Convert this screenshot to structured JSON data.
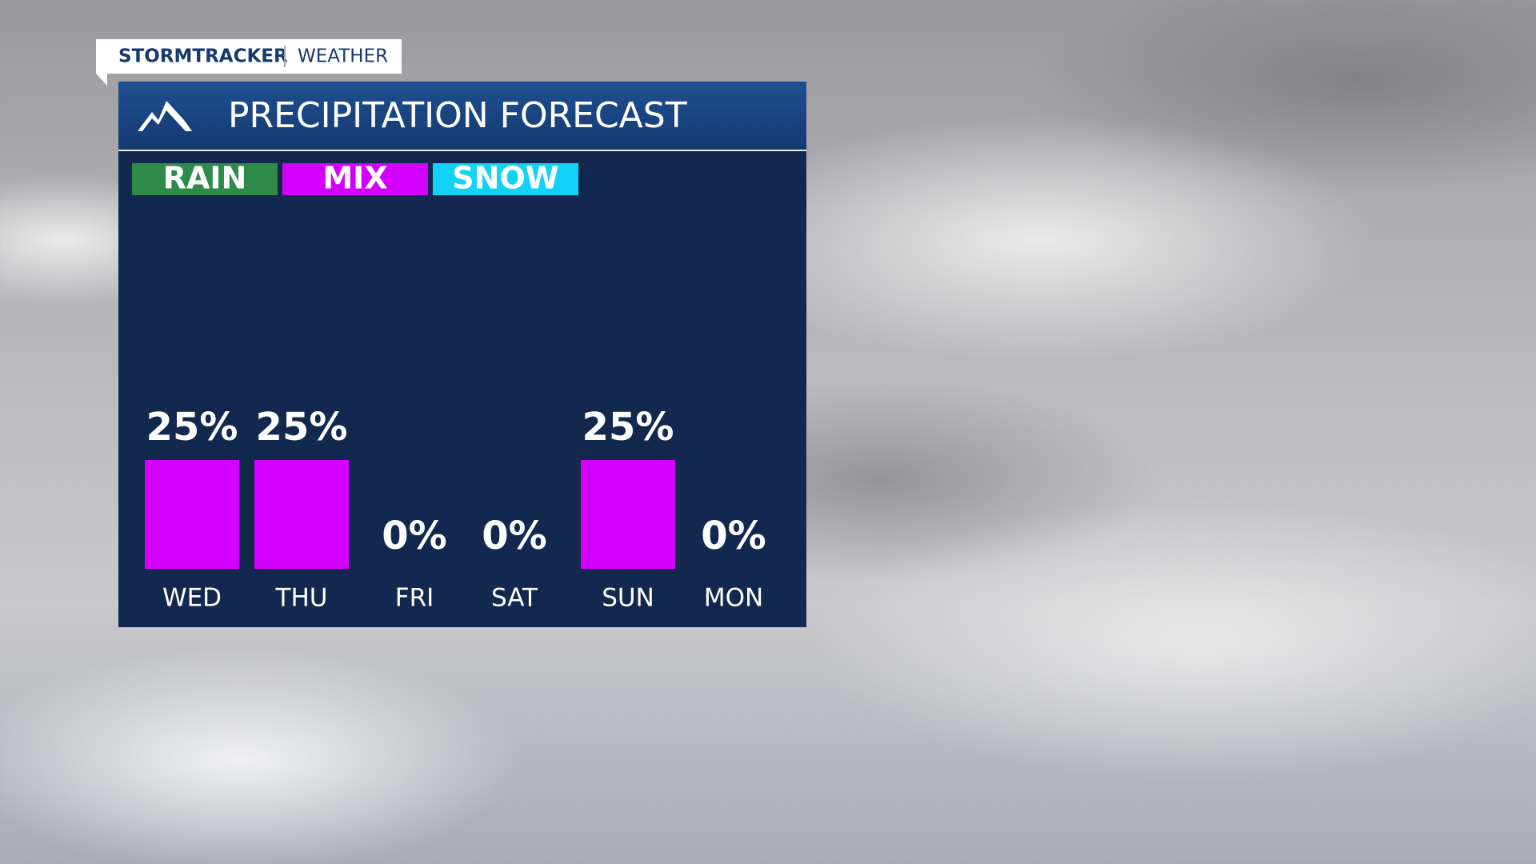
{
  "header": {
    "brand": "STORMTRACKER",
    "section": "WEATHER"
  },
  "chart_data": {
    "type": "bar",
    "title": "PRECIPITATION FORECAST",
    "legend": [
      {
        "name": "RAIN",
        "color": "#2e8b47"
      },
      {
        "name": "MIX",
        "color": "#d400ff"
      },
      {
        "name": "SNOW",
        "color": "#12d3f5"
      }
    ],
    "categories": [
      "WED",
      "THU",
      "FRI",
      "SAT",
      "SUN",
      "MON"
    ],
    "values": [
      25,
      25,
      0,
      0,
      25,
      0
    ],
    "value_labels": [
      "25%",
      "25%",
      "0%",
      "0%",
      "25%",
      "0%"
    ],
    "bar_colors": [
      "#d400ff",
      "#d400ff",
      "#d400ff",
      "#d400ff",
      "#d400ff",
      "#d400ff"
    ]
  }
}
